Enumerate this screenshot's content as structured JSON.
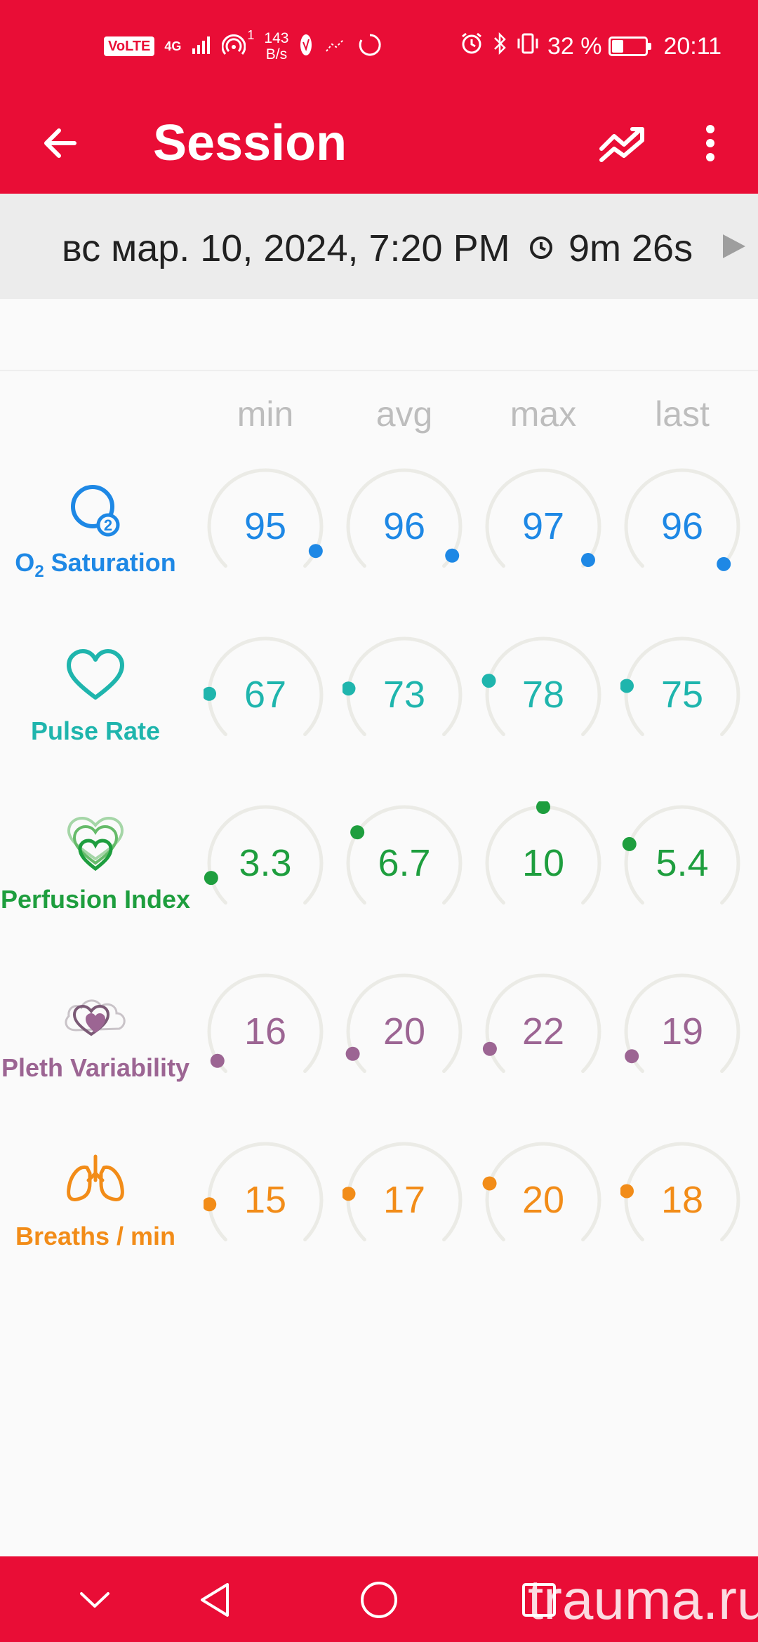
{
  "status_bar": {
    "volte": "VoLTE",
    "network": "4G",
    "hotspot_badge": "1",
    "speed_value": "143",
    "speed_unit": "B/s",
    "battery_percent": "32 %",
    "battery_level": 0.32,
    "time": "20:11"
  },
  "header": {
    "title": "Session"
  },
  "session": {
    "date": "вс мар. 10, 2024, 7:20 PM",
    "duration": "9m 26s"
  },
  "columns": [
    "min",
    "avg",
    "max",
    "last"
  ],
  "metrics": [
    {
      "name_main": "O",
      "name_sub": "2",
      "name_rest": " Saturation",
      "icon": "o2-bubble-icon",
      "color": "#1e88e5",
      "values": [
        "95",
        "96",
        "97",
        "96"
      ],
      "levels": [
        0.93,
        0.95,
        0.97,
        0.99
      ]
    },
    {
      "name": "Pulse Rate",
      "icon": "heart-outline-icon",
      "color": "#1fb5ad",
      "values": [
        "67",
        "73",
        "78",
        "75"
      ],
      "levels": [
        0.17,
        0.19,
        0.22,
        0.2
      ]
    },
    {
      "name": "Perfusion Index",
      "icon": "layered-hearts-icon",
      "color": "#1e9e3e",
      "values": [
        "3.3",
        "6.7",
        "10",
        "5.4"
      ],
      "levels": [
        0.11,
        0.29,
        0.5,
        0.24
      ]
    },
    {
      "name": "Pleth Variability",
      "icon": "heart-cloud-icon",
      "color": "#9c6593",
      "values": [
        "16",
        "20",
        "22",
        "19"
      ],
      "levels": [
        0.05,
        0.08,
        0.1,
        0.07
      ]
    },
    {
      "name": "Breaths / min",
      "icon": "lungs-icon",
      "color": "#f28c18",
      "values": [
        "15",
        "17",
        "20",
        "18"
      ],
      "levels": [
        0.15,
        0.19,
        0.23,
        0.2
      ]
    }
  ],
  "watermark": "trauma.ru"
}
